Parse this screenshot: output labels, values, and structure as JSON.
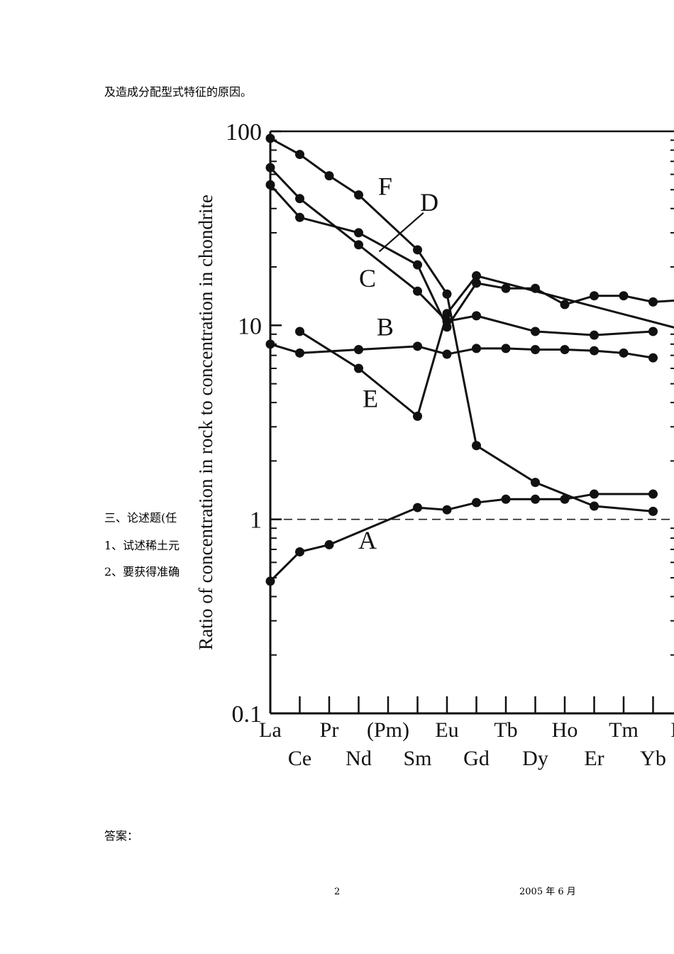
{
  "document": {
    "intro_line": "及造成分配型式特征的原因。",
    "section_heading": "三、论述题(任",
    "question_1": "1、试述稀土元",
    "question_2": "2、要获得准确",
    "answer_label": "答案：",
    "page_number": "2",
    "footer_date": "2005 年 6 月"
  },
  "chart_data": {
    "type": "line",
    "y_scale": "log",
    "ylim": [
      0.1,
      100
    ],
    "ylabel": "Ratio of concentration in rock to concentration in chondrite",
    "xlabel": "",
    "categories": [
      "La",
      "Ce",
      "Pr",
      "Nd",
      "(Pm)",
      "Sm",
      "Eu",
      "Gd",
      "Tb",
      "Dy",
      "Ho",
      "Er",
      "Tm",
      "Yb",
      "Lu"
    ],
    "y_ticks": [
      {
        "value": 100,
        "label": "100"
      },
      {
        "value": 10,
        "label": "10"
      },
      {
        "value": 1,
        "label": "1"
      },
      {
        "value": 0.1,
        "label": "0.1"
      }
    ],
    "reference_line": {
      "value": 1,
      "style": "dashed"
    },
    "series": [
      {
        "name": "A",
        "label": "A",
        "label_at": [
          3.3,
          0.78
        ],
        "values": [
          0.48,
          0.68,
          0.74,
          null,
          null,
          1.15,
          1.12,
          1.22,
          1.27,
          1.27,
          1.27,
          1.35,
          null,
          1.35,
          null
        ]
      },
      {
        "name": "B",
        "label": "B",
        "label_at": [
          3.9,
          9.8
        ],
        "values": [
          8.0,
          7.2,
          null,
          7.5,
          null,
          7.8,
          7.1,
          7.6,
          7.6,
          7.5,
          7.5,
          7.4,
          7.2,
          6.8,
          null
        ]
      },
      {
        "name": "C",
        "label": "C",
        "label_at": [
          3.3,
          17.5
        ],
        "values": [
          65,
          45,
          null,
          26,
          null,
          15,
          10.5,
          11.2,
          null,
          9.3,
          null,
          8.9,
          null,
          9.3,
          null
        ]
      },
      {
        "name": "D",
        "label": "D",
        "label_at": [
          5.4,
          43
        ],
        "leader": [
          [
            3.7,
            24
          ],
          [
            5.2,
            38
          ]
        ],
        "values": [
          53,
          36,
          null,
          30,
          null,
          20.5,
          9.8,
          16.5,
          15.5,
          15.5,
          12.8,
          14.2,
          14.2,
          13.2,
          13.5
        ]
      },
      {
        "name": "E",
        "label": "E",
        "label_at": [
          3.4,
          4.2
        ],
        "values": [
          null,
          9.3,
          null,
          6.0,
          null,
          3.4,
          11.5,
          18,
          null,
          null,
          null,
          null,
          null,
          null,
          9.5
        ]
      },
      {
        "name": "F",
        "label": "F",
        "label_at": [
          3.9,
          52
        ],
        "values": [
          92,
          76,
          59,
          47,
          null,
          24.5,
          14.5,
          2.4,
          null,
          1.55,
          null,
          1.17,
          null,
          1.1,
          null
        ]
      }
    ]
  }
}
